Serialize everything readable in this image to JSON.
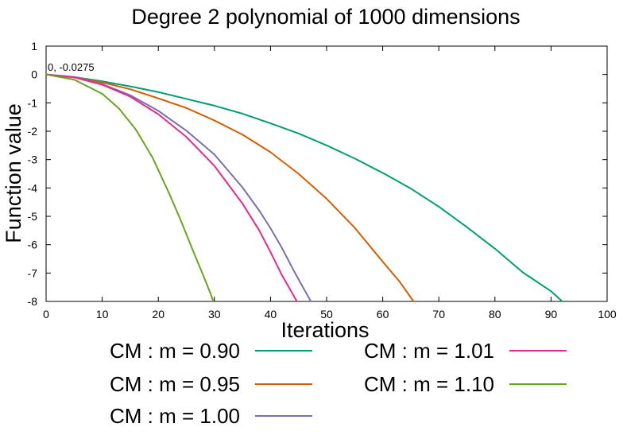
{
  "chart_data": {
    "type": "line",
    "title": "Degree 2 polynomial of 1000 dimensions",
    "xlabel": "Iterations",
    "ylabel": "Function value",
    "xlim": [
      0,
      100
    ],
    "ylim": [
      -8,
      1
    ],
    "xticks": [
      0,
      10,
      20,
      30,
      40,
      50,
      60,
      70,
      80,
      90,
      100
    ],
    "yticks": [
      1,
      0,
      -1,
      -2,
      -3,
      -4,
      -5,
      -6,
      -7,
      -8
    ],
    "grid": false,
    "legend_position": "bottom",
    "annotation": {
      "text": "0, -0.0275",
      "x": 0,
      "y": -0.0275
    },
    "series": [
      {
        "name": "CM : m = 0.90",
        "color": "#009e73",
        "x": [
          0,
          5,
          10,
          15,
          20,
          25,
          30,
          35,
          40,
          45,
          50,
          55,
          60,
          65,
          70,
          75,
          80,
          85,
          90,
          92
        ],
        "y": [
          0,
          -0.09,
          -0.24,
          -0.42,
          -0.62,
          -0.86,
          -1.1,
          -1.38,
          -1.72,
          -2.08,
          -2.5,
          -2.96,
          -3.47,
          -4.02,
          -4.66,
          -5.38,
          -6.14,
          -6.98,
          -7.64,
          -8.0
        ]
      },
      {
        "name": "CM : m = 0.95",
        "color": "#d55e00",
        "x": [
          0,
          5,
          10,
          15,
          20,
          25,
          30,
          35,
          40,
          45,
          50,
          55,
          60,
          63,
          65.5
        ],
        "y": [
          0,
          -0.1,
          -0.28,
          -0.52,
          -0.84,
          -1.18,
          -1.62,
          -2.12,
          -2.74,
          -3.5,
          -4.38,
          -5.4,
          -6.6,
          -7.3,
          -8.0
        ]
      },
      {
        "name": "CM : m = 1.00",
        "color": "#7570b3",
        "x": [
          0,
          5,
          10,
          15,
          20,
          25,
          30,
          35,
          38,
          40,
          42,
          44,
          45.5,
          47.2
        ],
        "y": [
          0,
          -0.09,
          -0.34,
          -0.73,
          -1.28,
          -1.98,
          -2.82,
          -3.98,
          -4.8,
          -5.42,
          -6.1,
          -6.86,
          -7.4,
          -8.0
        ]
      },
      {
        "name": "CM : m = 1.01",
        "color": "#e7298a",
        "x": [
          0,
          5,
          10,
          15,
          20,
          25,
          30,
          35,
          38,
          40,
          42,
          43.5,
          44.7
        ],
        "y": [
          0,
          -0.1,
          -0.36,
          -0.78,
          -1.4,
          -2.2,
          -3.22,
          -4.55,
          -5.5,
          -6.26,
          -7.06,
          -7.58,
          -8.0
        ]
      },
      {
        "name": "CM : m = 1.10",
        "color": "#66a61e",
        "x": [
          0,
          5,
          10,
          13,
          16,
          19,
          22,
          24,
          26,
          27.5,
          28.5,
          29.5,
          29.8
        ],
        "y": [
          0,
          -0.18,
          -0.68,
          -1.2,
          -1.94,
          -2.94,
          -4.22,
          -5.14,
          -6.12,
          -6.84,
          -7.32,
          -7.82,
          -8.0
        ]
      }
    ]
  }
}
